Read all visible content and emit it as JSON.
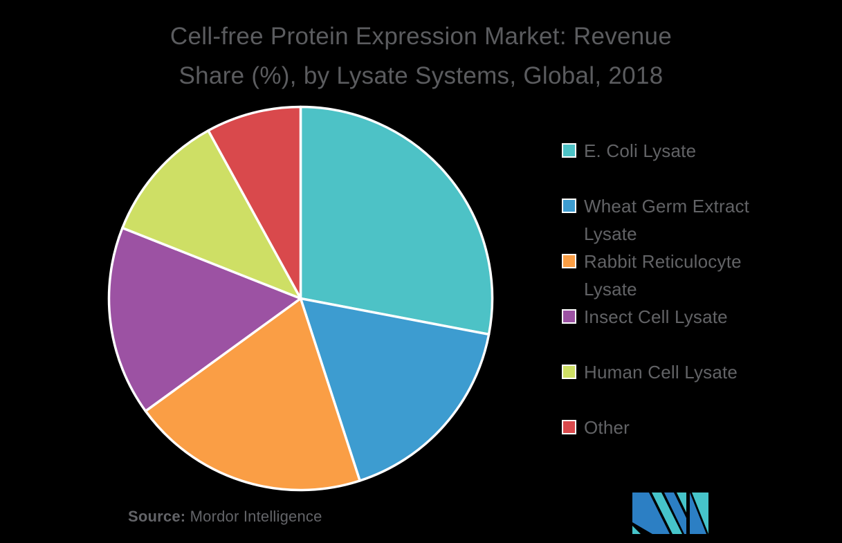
{
  "title": {
    "line1": "Cell-free Protein Expression Market: Revenue",
    "line2": "Share (%), by Lysate Systems, Global, 2018"
  },
  "chart_data": {
    "type": "pie",
    "title": "Cell-free Protein Expression Market: Revenue Share (%), by Lysate Systems, Global, 2018",
    "unit": "revenue share (%)",
    "start_angle_deg": 0,
    "direction": "clockwise",
    "legend_position": "right",
    "slices": [
      {
        "label": "E. Coli Lysate",
        "value": 28,
        "color": "#4DC2C6"
      },
      {
        "label": "Wheat Germ Extract Lysate",
        "value": 17,
        "color": "#3D9CD0"
      },
      {
        "label": "Rabbit Reticulocyte Lysate",
        "value": 20,
        "color": "#FA9E45"
      },
      {
        "label": "Insect Cell Lysate",
        "value": 16,
        "color": "#9C52A3"
      },
      {
        "label": "Human Cell Lysate",
        "value": 11,
        "color": "#CEDF65"
      },
      {
        "label": "Other",
        "value": 8,
        "color": "#D9494C"
      }
    ]
  },
  "source": {
    "prefix": "Source:",
    "text": " Mordor Intelligence"
  },
  "logo": {
    "alt": "Mordor Intelligence logo",
    "teal": "#46C4CA",
    "blue": "#2C7FC4"
  },
  "colors": {
    "background": "#000000",
    "title_text": "#5B5C5F",
    "legend_text": "#626366",
    "source_text": "#636468",
    "pie_border": "#FFFFFF"
  }
}
